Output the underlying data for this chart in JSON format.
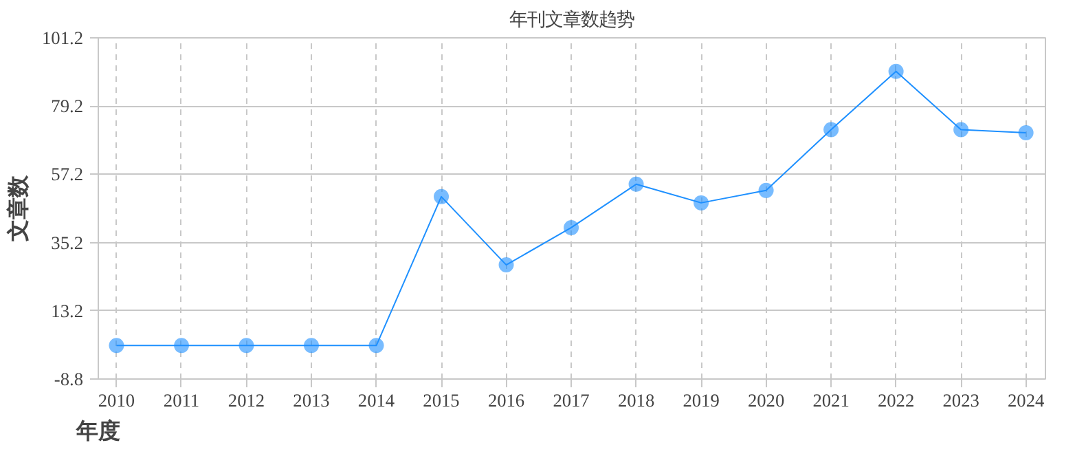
{
  "chart_data": {
    "type": "line",
    "title": "年刊文章数趋势",
    "xlabel": "年度",
    "ylabel": "文章数",
    "categories": [
      "2010",
      "2011",
      "2012",
      "2013",
      "2014",
      "2015",
      "2016",
      "2017",
      "2018",
      "2019",
      "2020",
      "2021",
      "2022",
      "2023",
      "2024"
    ],
    "series": [
      {
        "color": "#1e90ff",
        "values": [
          2,
          2,
          2,
          2,
          2,
          50,
          28,
          40,
          54,
          48,
          52,
          71.6,
          90.4,
          71.6,
          70.6
        ]
      }
    ],
    "ylim": [
      -8.8,
      101.2
    ],
    "yticks": [
      -8.8,
      13.2,
      35.2,
      57.2,
      79.2,
      101.2
    ],
    "grid": true,
    "marker": "circle",
    "line_style": "solid"
  }
}
